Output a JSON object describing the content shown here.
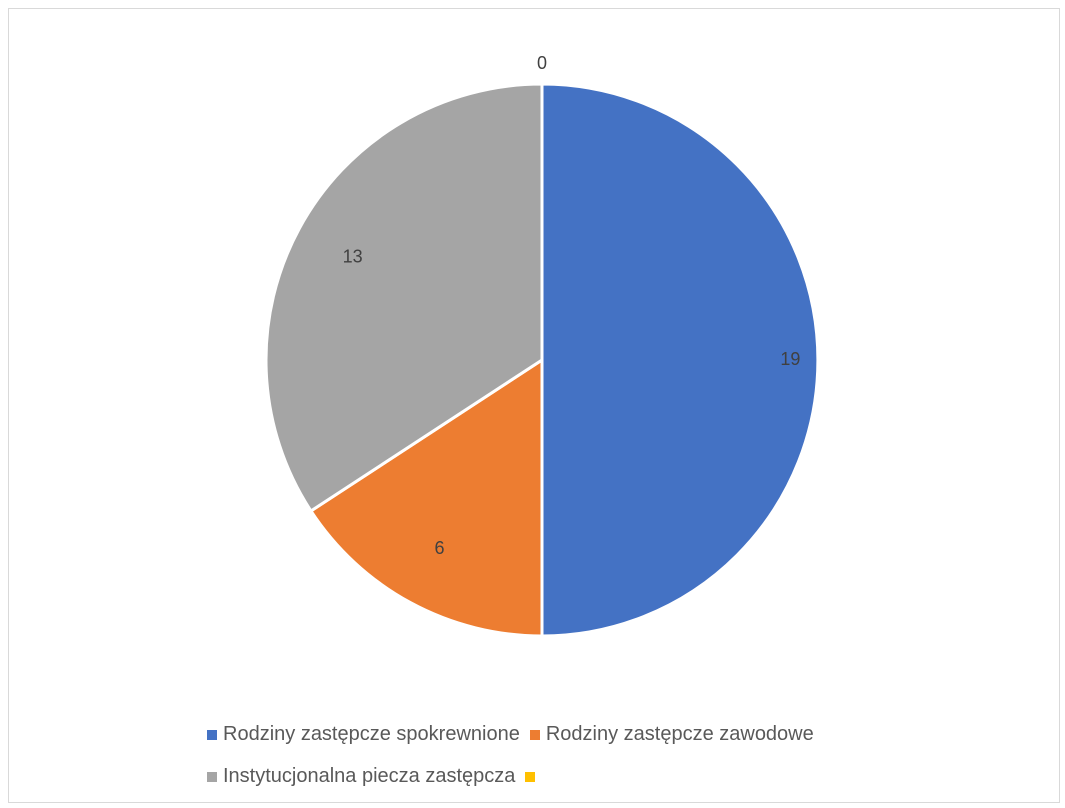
{
  "chart_data": {
    "type": "pie",
    "title": "",
    "categories": [
      "Rodziny zastępcze spokrewnione",
      "Rodziny zastępcze zawodowe",
      "Instytucjonalna piecza zastępcza",
      ""
    ],
    "values": [
      19,
      6,
      13,
      0
    ],
    "colors": [
      "#4472C4",
      "#ED7D31",
      "#A5A5A5",
      "#FFC000"
    ],
    "data_labels": [
      "19",
      "6",
      "13",
      "0"
    ],
    "legend_position": "bottom",
    "start_angle_deg": 0,
    "direction": "clockwise"
  },
  "legend": {
    "items": [
      {
        "label": "Rodziny zastępcze spokrewnione",
        "color": "#4472C4"
      },
      {
        "label": "Rodziny zastępcze zawodowe",
        "color": "#ED7D31"
      },
      {
        "label": "Instytucjonalna piecza zastępcza",
        "color": "#A5A5A5"
      },
      {
        "label": "",
        "color": "#FFC000"
      }
    ]
  }
}
